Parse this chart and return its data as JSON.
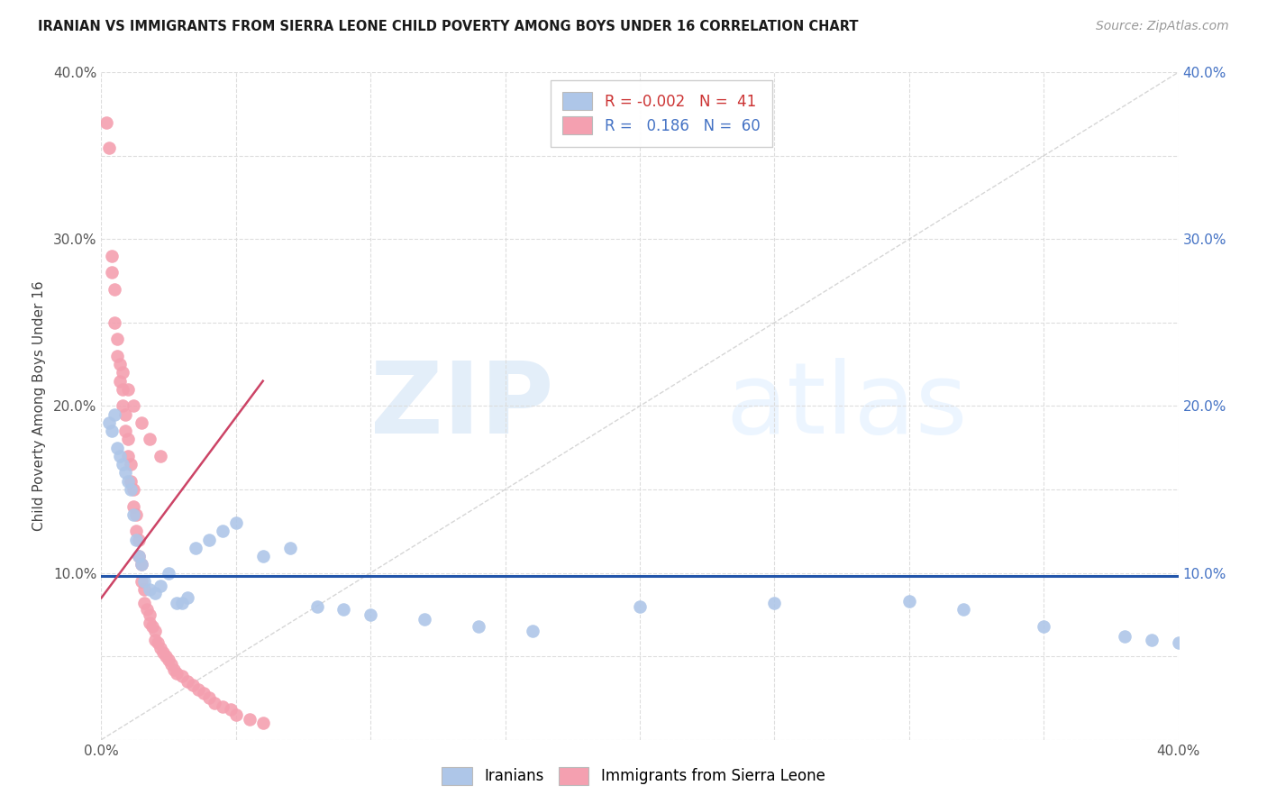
{
  "title": "IRANIAN VS IMMIGRANTS FROM SIERRA LEONE CHILD POVERTY AMONG BOYS UNDER 16 CORRELATION CHART",
  "source": "Source: ZipAtlas.com",
  "ylabel": "Child Poverty Among Boys Under 16",
  "xlim": [
    0.0,
    0.4
  ],
  "ylim": [
    0.0,
    0.4
  ],
  "legend_R1": "-0.002",
  "legend_N1": "41",
  "legend_R2": "0.186",
  "legend_N2": "60",
  "color_iranian": "#aec6e8",
  "color_sierra": "#f4a0b0",
  "trend_color_iranian": "#2255aa",
  "trend_color_sierra": "#cc4466",
  "iranians_x": [
    0.003,
    0.004,
    0.005,
    0.006,
    0.007,
    0.008,
    0.009,
    0.01,
    0.011,
    0.012,
    0.013,
    0.014,
    0.015,
    0.016,
    0.018,
    0.02,
    0.022,
    0.025,
    0.028,
    0.03,
    0.032,
    0.035,
    0.04,
    0.045,
    0.05,
    0.06,
    0.07,
    0.08,
    0.09,
    0.1,
    0.12,
    0.14,
    0.16,
    0.2,
    0.25,
    0.3,
    0.32,
    0.35,
    0.38,
    0.39,
    0.4
  ],
  "iranians_y": [
    0.19,
    0.185,
    0.195,
    0.175,
    0.17,
    0.165,
    0.16,
    0.155,
    0.15,
    0.135,
    0.12,
    0.11,
    0.105,
    0.095,
    0.09,
    0.088,
    0.092,
    0.1,
    0.082,
    0.082,
    0.085,
    0.115,
    0.12,
    0.125,
    0.13,
    0.11,
    0.115,
    0.08,
    0.078,
    0.075,
    0.072,
    0.068,
    0.065,
    0.08,
    0.082,
    0.083,
    0.078,
    0.068,
    0.062,
    0.06,
    0.058
  ],
  "sierra_x": [
    0.002,
    0.003,
    0.004,
    0.004,
    0.005,
    0.005,
    0.006,
    0.006,
    0.007,
    0.007,
    0.008,
    0.008,
    0.009,
    0.009,
    0.01,
    0.01,
    0.011,
    0.011,
    0.012,
    0.012,
    0.013,
    0.013,
    0.014,
    0.014,
    0.015,
    0.015,
    0.016,
    0.016,
    0.017,
    0.018,
    0.018,
    0.019,
    0.02,
    0.02,
    0.021,
    0.022,
    0.023,
    0.024,
    0.025,
    0.026,
    0.027,
    0.028,
    0.03,
    0.032,
    0.034,
    0.036,
    0.038,
    0.04,
    0.042,
    0.045,
    0.048,
    0.05,
    0.055,
    0.06,
    0.008,
    0.01,
    0.012,
    0.015,
    0.018,
    0.022
  ],
  "sierra_y": [
    0.37,
    0.355,
    0.29,
    0.28,
    0.27,
    0.25,
    0.24,
    0.23,
    0.225,
    0.215,
    0.21,
    0.2,
    0.195,
    0.185,
    0.18,
    0.17,
    0.165,
    0.155,
    0.15,
    0.14,
    0.135,
    0.125,
    0.12,
    0.11,
    0.105,
    0.095,
    0.09,
    0.082,
    0.078,
    0.075,
    0.07,
    0.068,
    0.065,
    0.06,
    0.058,
    0.055,
    0.052,
    0.05,
    0.048,
    0.045,
    0.042,
    0.04,
    0.038,
    0.035,
    0.033,
    0.03,
    0.028,
    0.025,
    0.022,
    0.02,
    0.018,
    0.015,
    0.012,
    0.01,
    0.22,
    0.21,
    0.2,
    0.19,
    0.18,
    0.17
  ],
  "iran_trend_x": [
    0.0,
    0.4
  ],
  "iran_trend_y": [
    0.098,
    0.098
  ],
  "sierra_trend_x": [
    0.0,
    0.06
  ],
  "sierra_trend_y": [
    0.085,
    0.215
  ]
}
